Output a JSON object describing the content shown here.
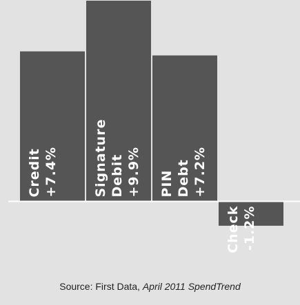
{
  "chart_data": {
    "type": "bar",
    "categories": [
      "Credit",
      "Signature Debit",
      "PIN Debt",
      "Check"
    ],
    "values": [
      7.4,
      9.9,
      7.2,
      -1.2
    ],
    "labels": [
      [
        "Credit",
        "+7.4%"
      ],
      [
        "Signature",
        "Debit",
        "+9.9%"
      ],
      [
        "PIN",
        "Debt",
        "+7.2%"
      ],
      [
        "Check",
        "-1.2%"
      ]
    ],
    "ylim": [
      -2.8,
      9.9
    ],
    "grid": false,
    "colors": {
      "bar": "#555555",
      "label": "#ffffff",
      "baseline": "#ffffff",
      "background": "#e2e2e2"
    }
  },
  "source": {
    "prefix": "Source: First Data, ",
    "italic": "April 2011 SpendTrend"
  }
}
